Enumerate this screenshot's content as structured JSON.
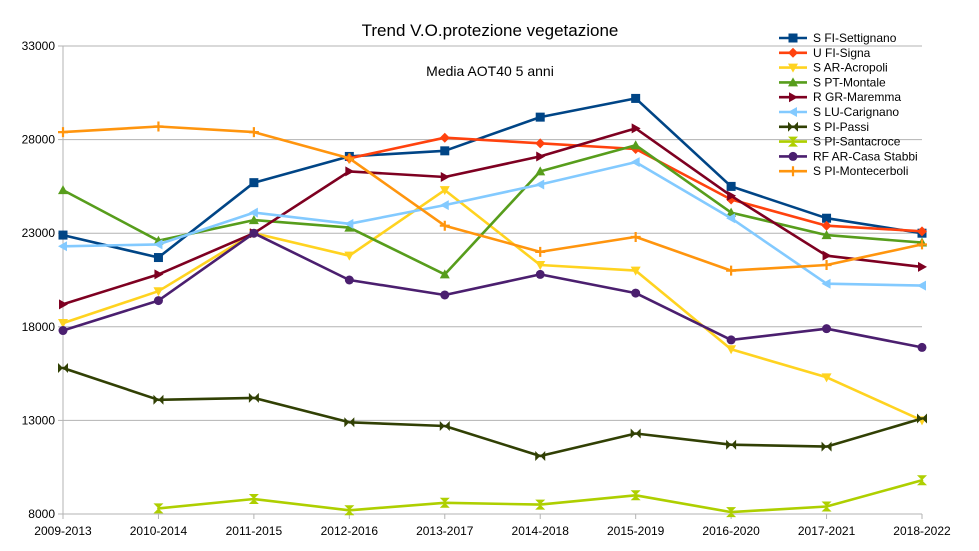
{
  "chart_data": {
    "type": "line",
    "title": "Trend V.O.protezione vegetazione",
    "subtitle": "Media AOT40 5 anni",
    "xlabel": "",
    "ylabel": "",
    "ylim": [
      8000,
      33000
    ],
    "yticks": [
      8000,
      13000,
      18000,
      23000,
      28000,
      33000
    ],
    "grid": true,
    "legend_position": "top-right",
    "categories": [
      "2009-2013",
      "2010-2014",
      "2011-2015",
      "2012-2016",
      "2013-2017",
      "2014-2018",
      "2015-2019",
      "2016-2020",
      "2017-2021",
      "2018-2022"
    ],
    "series": [
      {
        "name": "S FI-Settignano",
        "color": "#004586",
        "marker": "square",
        "values": [
          22900,
          21700,
          25700,
          27100,
          27400,
          29200,
          30200,
          25500,
          23800,
          23000
        ]
      },
      {
        "name": "U FI-Signa",
        "color": "#ff420e",
        "marker": "diamond",
        "values": [
          null,
          null,
          null,
          27000,
          28100,
          27800,
          27500,
          24800,
          23400,
          23100
        ]
      },
      {
        "name": "S AR-Acropoli",
        "color": "#ffd320",
        "marker": "triangle-down",
        "values": [
          18200,
          19900,
          23000,
          21800,
          25300,
          21300,
          21000,
          16800,
          15300,
          13000
        ]
      },
      {
        "name": "S PT-Montale",
        "color": "#579d1c",
        "marker": "triangle-up",
        "values": [
          25300,
          22600,
          23700,
          23300,
          20800,
          26300,
          27700,
          24100,
          22900,
          22500
        ]
      },
      {
        "name": "R GR-Maremma",
        "color": "#7e0021",
        "marker": "triangle-right",
        "values": [
          19200,
          20800,
          23000,
          26300,
          26000,
          27100,
          28600,
          25000,
          21800,
          21200
        ]
      },
      {
        "name": "S LU-Carignano",
        "color": "#83caff",
        "marker": "triangle-left",
        "values": [
          22300,
          22400,
          24100,
          23500,
          24500,
          25600,
          26800,
          23800,
          20300,
          20200
        ]
      },
      {
        "name": "S PI-Passi",
        "color": "#314004",
        "marker": "bowtie",
        "values": [
          15800,
          14100,
          14200,
          12900,
          12700,
          11100,
          12300,
          11700,
          11600,
          13100
        ]
      },
      {
        "name": "S PI-Santacroce",
        "color": "#aecf00",
        "marker": "hourglass",
        "values": [
          null,
          8300,
          8800,
          8200,
          8600,
          8500,
          9000,
          8100,
          8400,
          9800
        ]
      },
      {
        "name": "RF AR-Casa Stabbi",
        "color": "#4b1f6f",
        "marker": "circle",
        "values": [
          17800,
          19400,
          23000,
          20500,
          19700,
          20800,
          19800,
          17300,
          17900,
          16900
        ]
      },
      {
        "name": "S PI-Montecerboli",
        "color": "#ff950e",
        "marker": "star",
        "values": [
          28400,
          28700,
          28400,
          27000,
          23400,
          22000,
          22800,
          21000,
          21300,
          22400
        ]
      }
    ]
  }
}
